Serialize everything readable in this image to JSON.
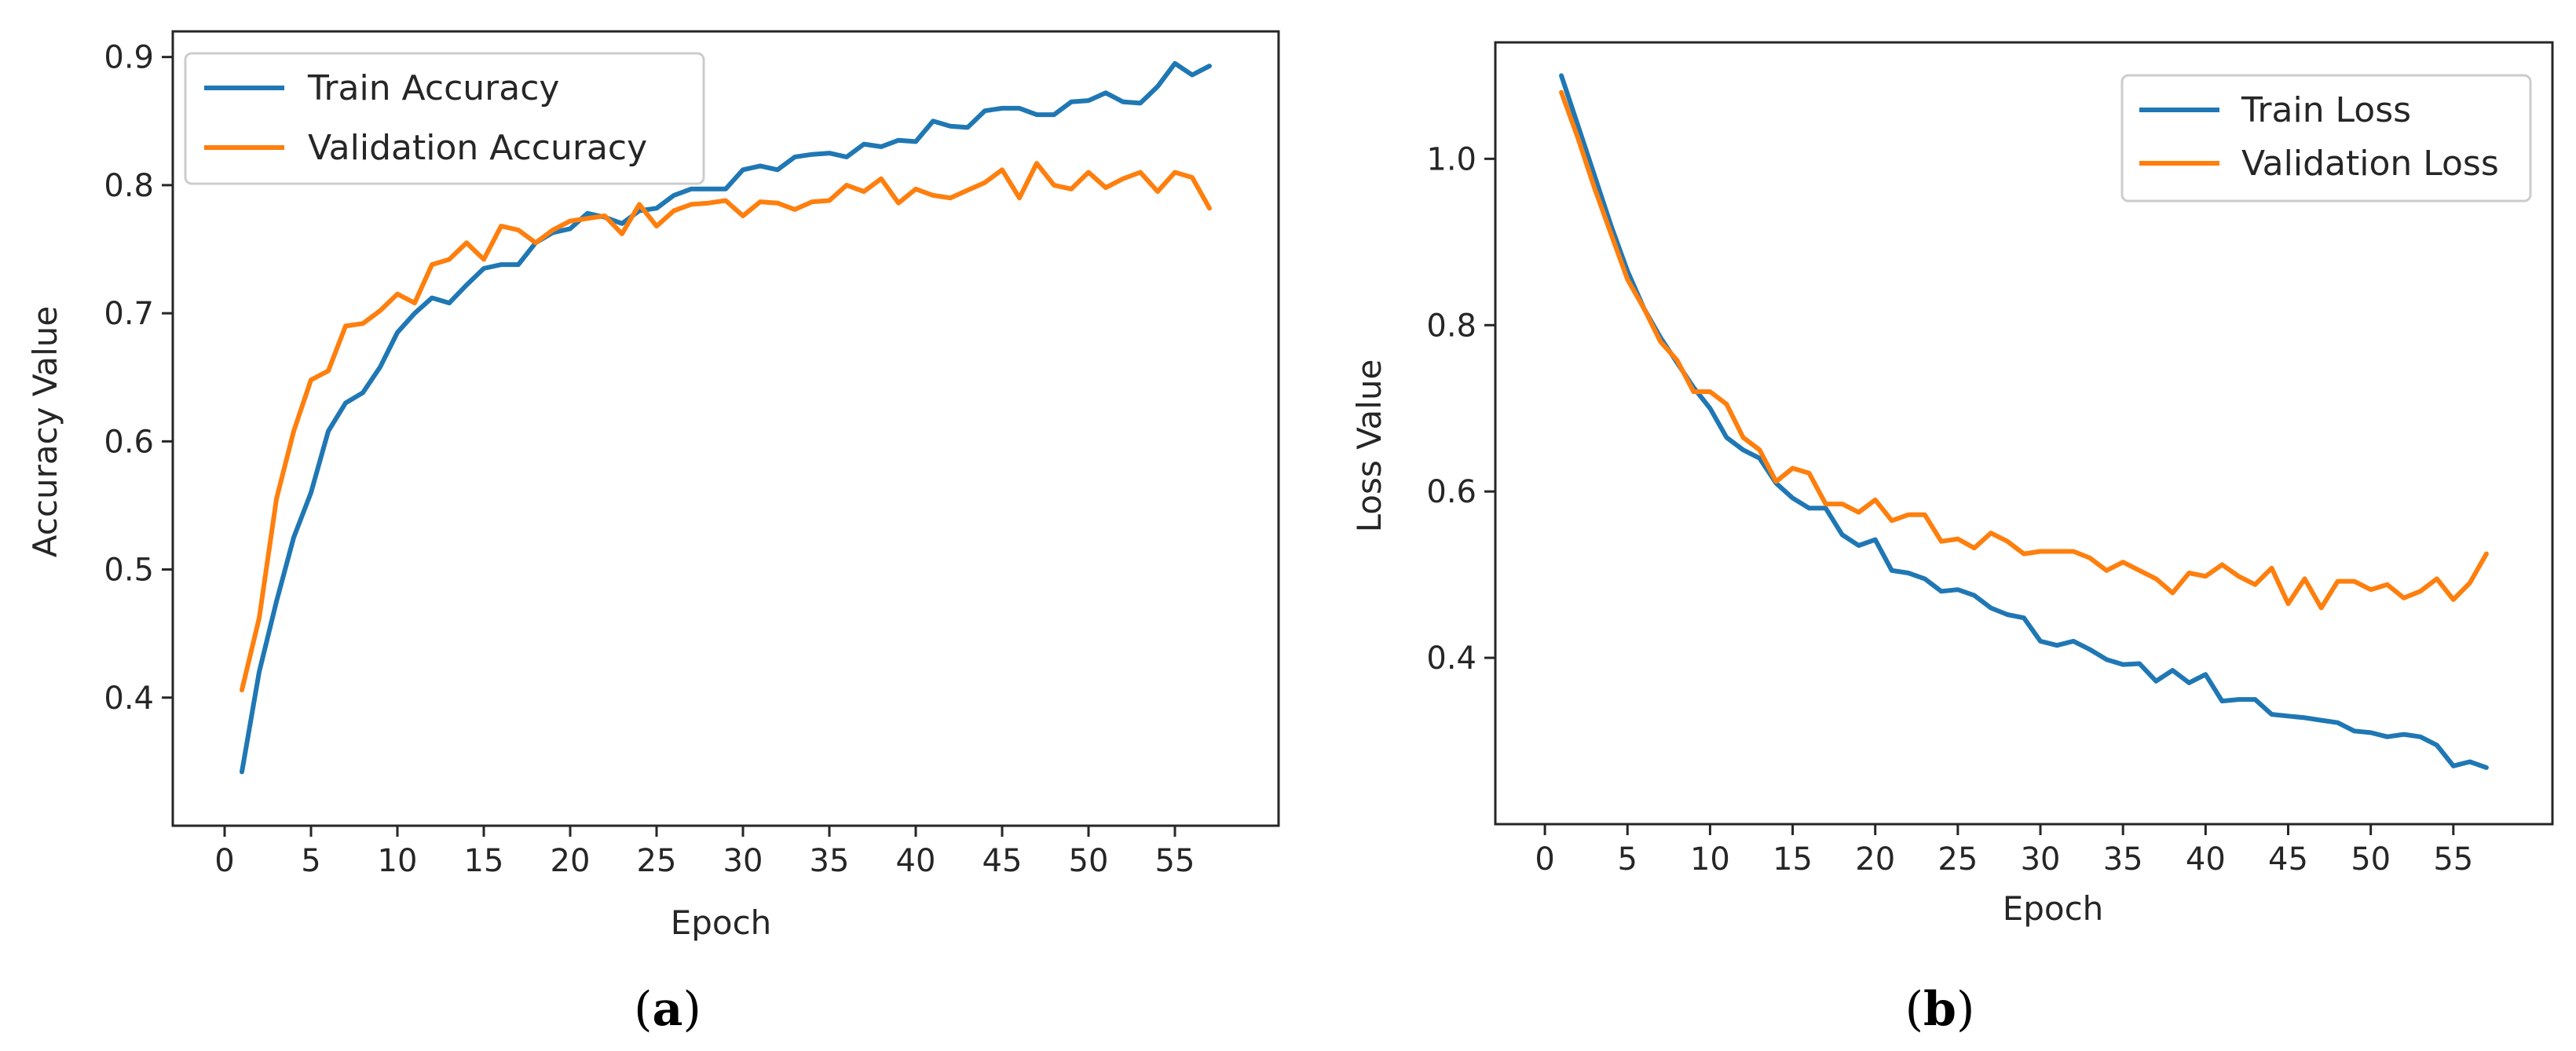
{
  "chart_data": [
    {
      "type": "line",
      "panel_label": "a",
      "title": "",
      "xlabel": "Epoch",
      "ylabel": "Accuracy Value",
      "xlim": [
        -3,
        61
      ],
      "ylim": [
        0.3,
        0.92
      ],
      "xticks": [
        0,
        5,
        10,
        15,
        20,
        25,
        30,
        35,
        40,
        45,
        50,
        55
      ],
      "yticks": [
        0.4,
        0.5,
        0.6,
        0.7,
        0.8,
        0.9
      ],
      "grid": false,
      "legend": "top-left",
      "x": [
        1,
        2,
        3,
        4,
        5,
        6,
        7,
        8,
        9,
        10,
        11,
        12,
        13,
        14,
        15,
        16,
        17,
        18,
        19,
        20,
        21,
        22,
        23,
        24,
        25,
        26,
        27,
        28,
        29,
        30,
        31,
        32,
        33,
        34,
        35,
        36,
        37,
        38,
        39,
        40,
        41,
        42,
        43,
        44,
        45,
        46,
        47,
        48,
        49,
        50,
        51,
        52,
        53,
        54,
        55,
        56,
        57
      ],
      "series": [
        {
          "name": "Train Accuracy",
          "color": "#1f77b4",
          "values": [
            0.342,
            0.42,
            0.475,
            0.525,
            0.56,
            0.608,
            0.63,
            0.638,
            0.658,
            0.685,
            0.7,
            0.712,
            0.708,
            0.722,
            0.735,
            0.738,
            0.738,
            0.755,
            0.763,
            0.766,
            0.778,
            0.775,
            0.77,
            0.78,
            0.782,
            0.792,
            0.797,
            0.797,
            0.797,
            0.812,
            0.815,
            0.812,
            0.822,
            0.824,
            0.825,
            0.822,
            0.832,
            0.83,
            0.835,
            0.834,
            0.85,
            0.846,
            0.845,
            0.858,
            0.86,
            0.86,
            0.855,
            0.855,
            0.865,
            0.866,
            0.872,
            0.865,
            0.864,
            0.877,
            0.895,
            0.886,
            0.893
          ]
        },
        {
          "name": "Validation Accuracy",
          "color": "#ff7f0e",
          "values": [
            0.406,
            0.462,
            0.555,
            0.608,
            0.648,
            0.655,
            0.69,
            0.692,
            0.702,
            0.715,
            0.708,
            0.738,
            0.742,
            0.755,
            0.742,
            0.768,
            0.765,
            0.755,
            0.765,
            0.772,
            0.774,
            0.776,
            0.762,
            0.785,
            0.768,
            0.78,
            0.785,
            0.786,
            0.788,
            0.776,
            0.787,
            0.786,
            0.781,
            0.787,
            0.788,
            0.8,
            0.795,
            0.805,
            0.786,
            0.797,
            0.792,
            0.79,
            0.796,
            0.802,
            0.812,
            0.79,
            0.817,
            0.8,
            0.797,
            0.81,
            0.798,
            0.805,
            0.81,
            0.795,
            0.81,
            0.806,
            0.782
          ]
        }
      ]
    },
    {
      "type": "line",
      "panel_label": "b",
      "title": "",
      "xlabel": "Epoch",
      "ylabel": "Loss Value",
      "xlim": [
        -3,
        61
      ],
      "ylim": [
        0.2,
        1.14
      ],
      "xticks": [
        0,
        5,
        10,
        15,
        20,
        25,
        30,
        35,
        40,
        45,
        50,
        55
      ],
      "yticks": [
        0.4,
        0.6,
        0.8,
        1.0
      ],
      "yticklabels": [
        "0.4",
        "0.6",
        "0.8",
        "1.0"
      ],
      "grid": false,
      "legend": "top-right",
      "x": [
        1,
        2,
        3,
        4,
        5,
        6,
        7,
        8,
        9,
        10,
        11,
        12,
        13,
        14,
        15,
        16,
        17,
        18,
        19,
        20,
        21,
        22,
        23,
        24,
        25,
        26,
        27,
        28,
        29,
        30,
        31,
        32,
        33,
        34,
        35,
        36,
        37,
        38,
        39,
        40,
        41,
        42,
        43,
        44,
        45,
        46,
        47,
        48,
        49,
        50,
        51,
        52,
        53,
        54,
        55,
        56,
        57
      ],
      "series": [
        {
          "name": "Train Loss",
          "color": "#1f77b4",
          "values": [
            1.1,
            1.04,
            0.98,
            0.92,
            0.865,
            0.82,
            0.785,
            0.755,
            0.725,
            0.7,
            0.665,
            0.65,
            0.64,
            0.61,
            0.592,
            0.58,
            0.58,
            0.548,
            0.535,
            0.542,
            0.505,
            0.502,
            0.495,
            0.48,
            0.482,
            0.475,
            0.46,
            0.452,
            0.448,
            0.42,
            0.415,
            0.42,
            0.41,
            0.398,
            0.392,
            0.393,
            0.372,
            0.385,
            0.37,
            0.38,
            0.348,
            0.35,
            0.35,
            0.332,
            0.33,
            0.328,
            0.325,
            0.322,
            0.312,
            0.31,
            0.305,
            0.308,
            0.305,
            0.295,
            0.27,
            0.275,
            0.268
          ]
        },
        {
          "name": "Validation Loss",
          "color": "#ff7f0e",
          "values": [
            1.08,
            1.025,
            0.965,
            0.91,
            0.855,
            0.82,
            0.78,
            0.758,
            0.72,
            0.72,
            0.705,
            0.665,
            0.65,
            0.612,
            0.628,
            0.622,
            0.585,
            0.585,
            0.575,
            0.59,
            0.565,
            0.572,
            0.572,
            0.54,
            0.543,
            0.532,
            0.55,
            0.54,
            0.525,
            0.528,
            0.528,
            0.528,
            0.52,
            0.505,
            0.515,
            0.505,
            0.495,
            0.478,
            0.502,
            0.498,
            0.512,
            0.498,
            0.488,
            0.508,
            0.465,
            0.495,
            0.46,
            0.492,
            0.492,
            0.482,
            0.488,
            0.472,
            0.48,
            0.495,
            0.47,
            0.49,
            0.525
          ]
        }
      ]
    }
  ]
}
